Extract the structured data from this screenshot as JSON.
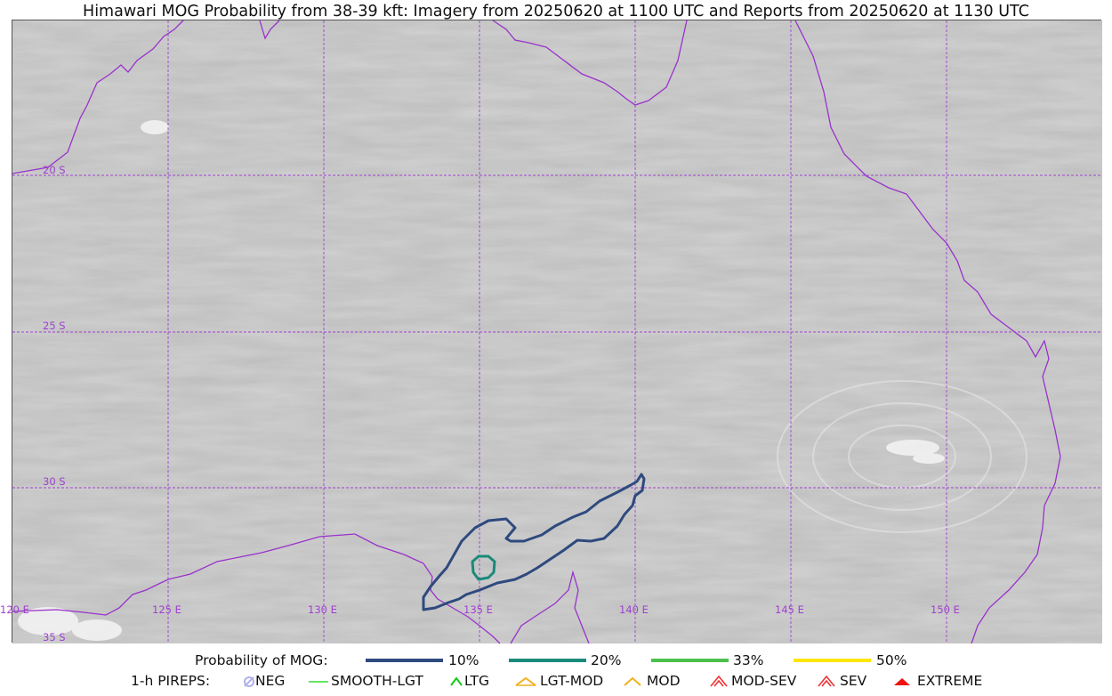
{
  "title": "Himawari MOG Probability from 38-39 kft: Imagery from 20250620 at 1100 UTC and Reports from 20250620 at 1130 UTC",
  "map": {
    "lat_labels": [
      "20 S",
      "25 S",
      "30 S",
      "35 S"
    ],
    "lon_labels": [
      "120 E",
      "125 E",
      "130 E",
      "135 E",
      "140 E",
      "145 E",
      "150 E"
    ],
    "colors": {
      "graticule": "#a040d0",
      "coastline": "#9932cc",
      "contour_10": "#2e4a7e",
      "contour_20": "#1a8a7a"
    }
  },
  "legend": {
    "probability_label": "Probability of MOG:",
    "probability_items": [
      {
        "label": "10%",
        "color": "#2e4a7e"
      },
      {
        "label": "20%",
        "color": "#1a8a7a"
      },
      {
        "label": "33%",
        "color": "#4cc04c"
      },
      {
        "label": "50%",
        "color": "#ffe600"
      }
    ],
    "pirep_label": "1-h PIREPS:",
    "pirep_items": [
      {
        "label": "NEG",
        "icon": "neg-icon",
        "color": "#b0b0f0"
      },
      {
        "label": "SMOOTH-LGT",
        "icon": "smooth-lgt-icon",
        "color": "#33dd33"
      },
      {
        "label": "LTG",
        "icon": "ltg-icon",
        "color": "#11cc11"
      },
      {
        "label": "LGT-MOD",
        "icon": "lgt-mod-icon",
        "color": "#f0b020"
      },
      {
        "label": "MOD",
        "icon": "mod-icon",
        "color": "#f0b020"
      },
      {
        "label": "MOD-SEV",
        "icon": "mod-sev-icon",
        "color": "#ee3333"
      },
      {
        "label": "SEV",
        "icon": "sev-icon",
        "color": "#ee3333"
      },
      {
        "label": "EXTREME",
        "icon": "extreme-icon",
        "color": "#ee1111"
      }
    ]
  }
}
